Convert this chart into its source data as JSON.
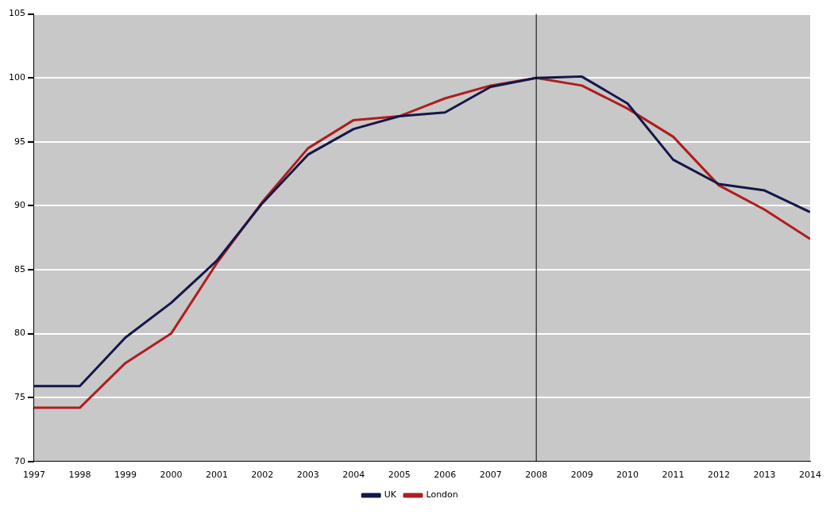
{
  "chart_data": {
    "type": "line",
    "x": [
      1997,
      1998,
      1999,
      2000,
      2001,
      2002,
      2003,
      2004,
      2005,
      2006,
      2007,
      2008,
      2009,
      2010,
      2011,
      2012,
      2013,
      2014
    ],
    "series": [
      {
        "name": "UK",
        "color": "#14174a",
        "values": [
          75.9,
          75.9,
          79.7,
          82.4,
          85.7,
          90.2,
          94.0,
          96.0,
          97.0,
          97.3,
          99.3,
          100,
          100.1,
          98.0,
          93.6,
          91.7,
          91.2,
          89.5
        ]
      },
      {
        "name": "London",
        "color": "#b01d1d",
        "values": [
          74.2,
          74.2,
          77.7,
          80.0,
          85.5,
          90.3,
          94.5,
          96.7,
          97.0,
          98.4,
          99.4,
          100,
          99.4,
          97.6,
          95.4,
          91.6,
          89.7,
          87.4
        ]
      }
    ],
    "xlim": [
      1997,
      2014
    ],
    "xticks": [
      1997,
      1998,
      1999,
      2000,
      2001,
      2002,
      2003,
      2004,
      2005,
      2006,
      2007,
      2008,
      2009,
      2010,
      2011,
      2012,
      2013,
      2014
    ],
    "ylim": [
      70,
      105
    ],
    "yticks": [
      70,
      75,
      80,
      85,
      90,
      95,
      100,
      105
    ],
    "ref_lines": [
      {
        "axis": "x",
        "value": 2008,
        "color": "#000000"
      }
    ],
    "grid": "y",
    "legend": "bottom",
    "marker": "none",
    "line_style": "solid"
  }
}
